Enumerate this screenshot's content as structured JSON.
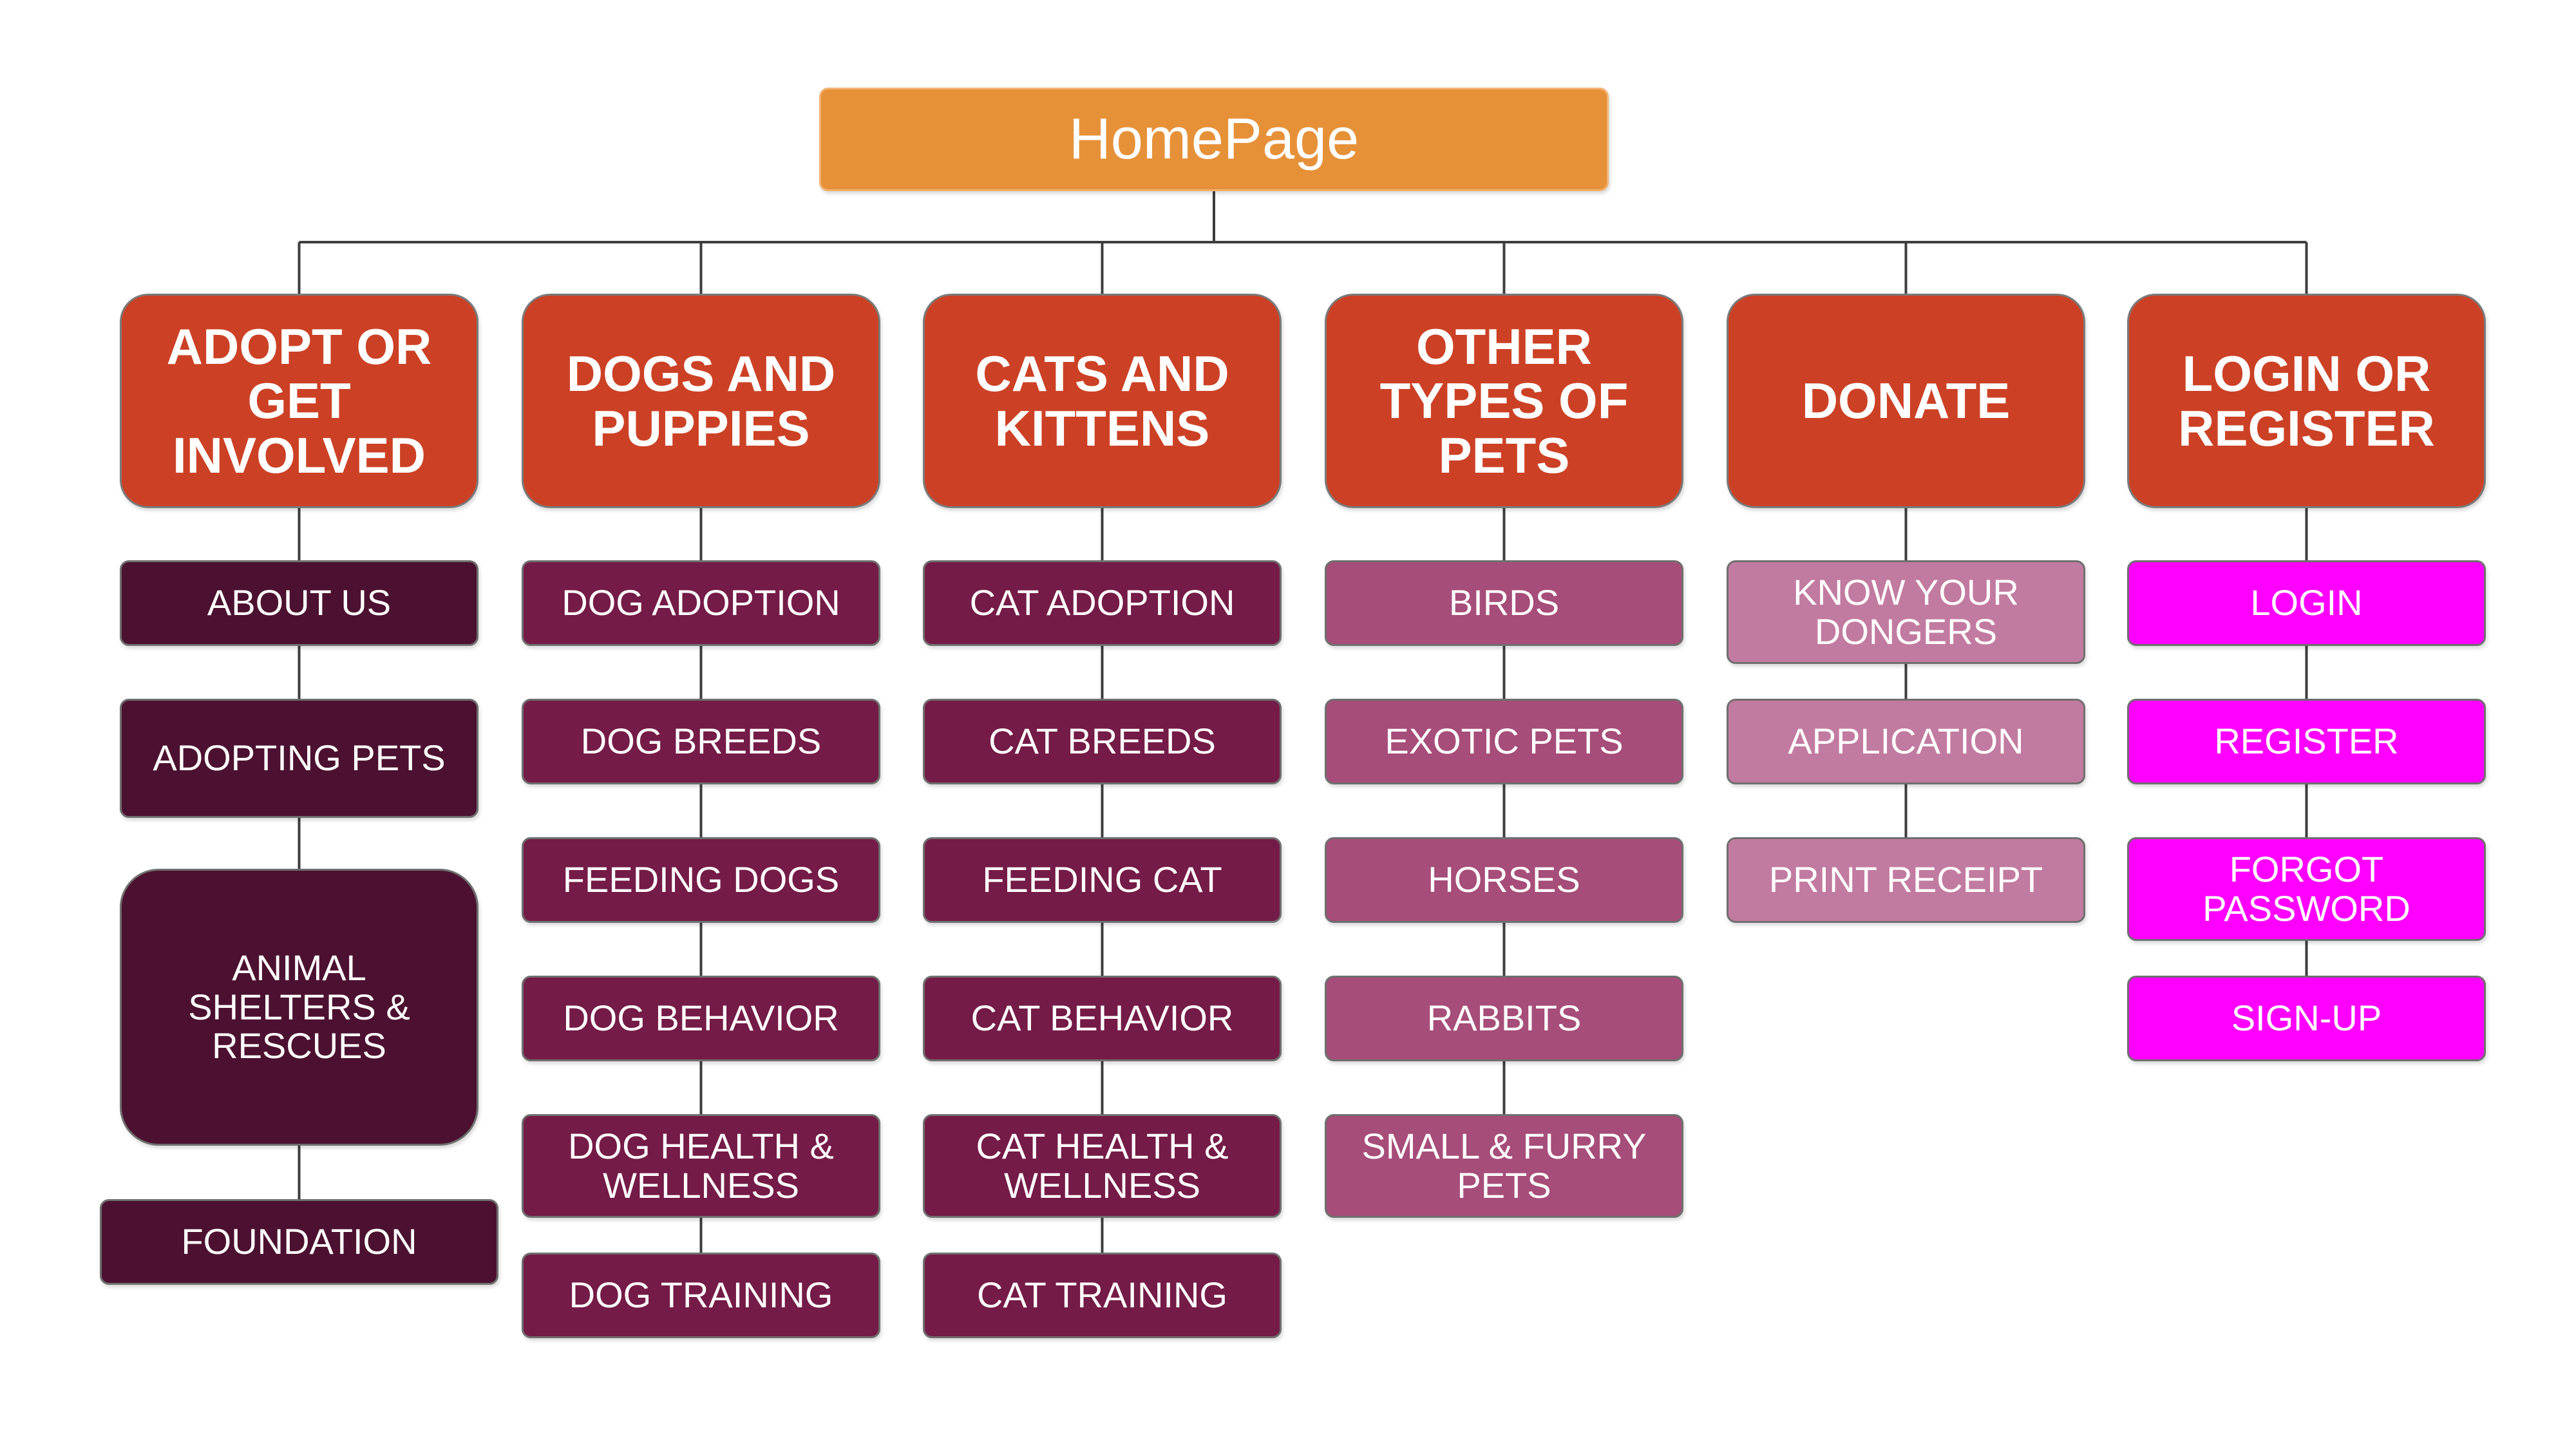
{
  "diagram": {
    "root": {
      "label": "HomePage"
    },
    "colors": {
      "root": "#e69138",
      "category": "#cc4125",
      "connector": "#3d3d3d"
    },
    "columns": [
      {
        "label": "ADOPT OR GET INVOLVED",
        "lines": [
          "ADOPT OR",
          "GET",
          "INVOLVED"
        ],
        "item_color": "#4c1130",
        "items": [
          {
            "lines": [
              "ABOUT US"
            ]
          },
          {
            "lines": [
              "ADOPTING PETS"
            ]
          },
          {
            "lines": [
              "ANIMAL",
              "SHELTERS &",
              "RESCUES"
            ]
          },
          {
            "lines": [
              "FOUNDATION"
            ]
          }
        ]
      },
      {
        "label": "DOGS AND PUPPIES",
        "lines": [
          "DOGS AND",
          "PUPPIES"
        ],
        "item_color": "#741b47",
        "items": [
          {
            "lines": [
              "DOG ADOPTION"
            ]
          },
          {
            "lines": [
              "DOG BREEDS"
            ]
          },
          {
            "lines": [
              "FEEDING DOGS"
            ]
          },
          {
            "lines": [
              "DOG BEHAVIOR"
            ]
          },
          {
            "lines": [
              "DOG HEALTH &",
              "WELLNESS"
            ]
          },
          {
            "lines": [
              "DOG TRAINING"
            ]
          }
        ]
      },
      {
        "label": "CATS AND KITTENS",
        "lines": [
          "CATS AND",
          "KITTENS"
        ],
        "item_color": "#741b47",
        "items": [
          {
            "lines": [
              "CAT ADOPTION"
            ]
          },
          {
            "lines": [
              "CAT BREEDS"
            ]
          },
          {
            "lines": [
              "FEEDING CAT"
            ]
          },
          {
            "lines": [
              "CAT BEHAVIOR"
            ]
          },
          {
            "lines": [
              "CAT HEALTH &",
              "WELLNESS"
            ]
          },
          {
            "lines": [
              "CAT TRAINING"
            ]
          }
        ]
      },
      {
        "label": "OTHER TYPES OF PETS",
        "lines": [
          "OTHER",
          "TYPES OF",
          "PETS"
        ],
        "item_color": "#a64d79",
        "items": [
          {
            "lines": [
              "BIRDS"
            ]
          },
          {
            "lines": [
              "EXOTIC PETS"
            ]
          },
          {
            "lines": [
              "HORSES"
            ]
          },
          {
            "lines": [
              "RABBITS"
            ]
          },
          {
            "lines": [
              "SMALL & FURRY",
              "PETS"
            ]
          }
        ]
      },
      {
        "label": "DONATE",
        "lines": [
          "DONATE"
        ],
        "item_color": "#c27ba0",
        "items": [
          {
            "lines": [
              "KNOW YOUR",
              "DONGERS"
            ]
          },
          {
            "lines": [
              "APPLICATION"
            ]
          },
          {
            "lines": [
              "PRINT RECEIPT"
            ]
          }
        ]
      },
      {
        "label": "LOGIN OR REGISTER",
        "lines": [
          "LOGIN OR",
          "REGISTER"
        ],
        "item_color": "#ff00ff",
        "items": [
          {
            "lines": [
              "LOGIN"
            ]
          },
          {
            "lines": [
              "REGISTER"
            ]
          },
          {
            "lines": [
              "FORGOT",
              "PASSWORD"
            ]
          },
          {
            "lines": [
              "SIGN-UP"
            ]
          }
        ]
      }
    ]
  }
}
